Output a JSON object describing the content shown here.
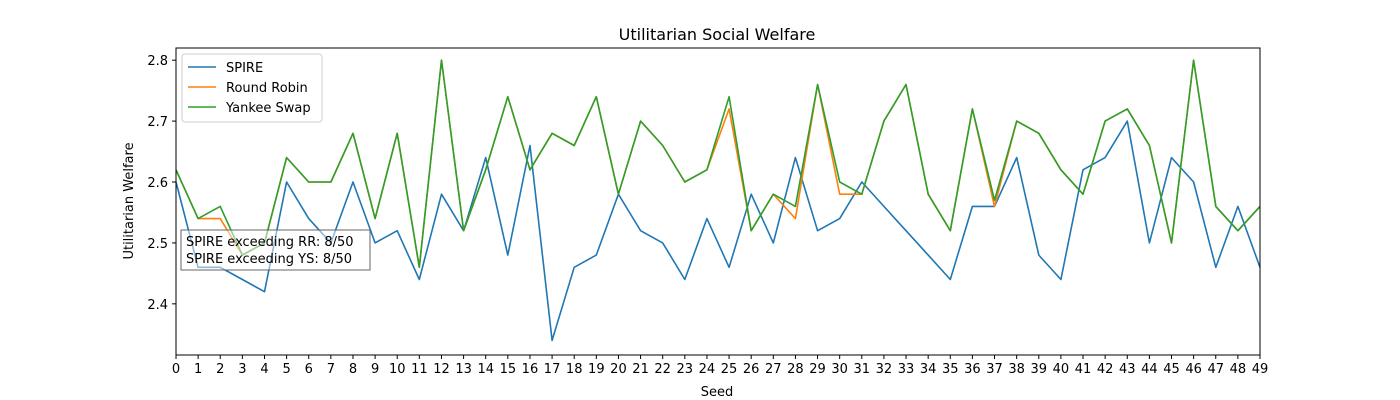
{
  "chart_data": {
    "type": "line",
    "title": "Utilitarian Social Welfare",
    "xlabel": "Seed",
    "ylabel": "Utilitarian Welfare",
    "xlim": [
      0,
      49
    ],
    "ylim": [
      2.316,
      2.82
    ],
    "xticks": [
      "0",
      "1",
      "2",
      "3",
      "4",
      "5",
      "6",
      "7",
      "8",
      "9",
      "10",
      "11",
      "12",
      "13",
      "14",
      "15",
      "16",
      "17",
      "18",
      "19",
      "20",
      "21",
      "22",
      "23",
      "24",
      "25",
      "26",
      "27",
      "28",
      "29",
      "30",
      "31",
      "32",
      "33",
      "34",
      "35",
      "36",
      "37",
      "38",
      "39",
      "40",
      "41",
      "42",
      "43",
      "44",
      "45",
      "46",
      "47",
      "48",
      "49"
    ],
    "yticks": [
      "2.4",
      "2.5",
      "2.6",
      "2.7",
      "2.8"
    ],
    "grid": false,
    "legend_position": "top-left",
    "series": [
      {
        "name": "SPIRE",
        "color": "#1f77b4",
        "values": [
          2.6,
          2.46,
          2.46,
          2.44,
          2.42,
          2.6,
          2.54,
          2.5,
          2.6,
          2.5,
          2.52,
          2.44,
          2.58,
          2.52,
          2.64,
          2.48,
          2.66,
          2.34,
          2.46,
          2.48,
          2.58,
          2.52,
          2.5,
          2.44,
          2.54,
          2.46,
          2.58,
          2.5,
          2.64,
          2.52,
          2.54,
          2.6,
          2.56,
          2.52,
          2.48,
          2.44,
          2.56,
          2.56,
          2.64,
          2.48,
          2.44,
          2.62,
          2.64,
          2.7,
          2.5,
          2.64,
          2.6,
          2.46,
          2.56,
          2.46
        ]
      },
      {
        "name": "Round Robin",
        "color": "#ff7f0e",
        "values": [
          2.62,
          2.54,
          2.54,
          2.48,
          2.5,
          2.64,
          2.6,
          2.6,
          2.68,
          2.54,
          2.68,
          2.46,
          2.8,
          2.52,
          2.62,
          2.74,
          2.62,
          2.68,
          2.66,
          2.74,
          2.58,
          2.7,
          2.66,
          2.6,
          2.62,
          2.72,
          2.52,
          2.58,
          2.54,
          2.76,
          2.58,
          2.58,
          2.7,
          2.76,
          2.58,
          2.52,
          2.72,
          2.56,
          2.7,
          2.68,
          2.62,
          2.58,
          2.7,
          2.72,
          2.66,
          2.5,
          2.8,
          2.56,
          2.52,
          2.56
        ]
      },
      {
        "name": "Yankee Swap",
        "color": "#2ca02c",
        "values": [
          2.62,
          2.54,
          2.56,
          2.48,
          2.5,
          2.64,
          2.6,
          2.6,
          2.68,
          2.54,
          2.68,
          2.46,
          2.8,
          2.52,
          2.62,
          2.74,
          2.62,
          2.68,
          2.66,
          2.74,
          2.58,
          2.7,
          2.66,
          2.6,
          2.62,
          2.74,
          2.52,
          2.58,
          2.56,
          2.76,
          2.6,
          2.58,
          2.7,
          2.76,
          2.58,
          2.52,
          2.72,
          2.57,
          2.7,
          2.68,
          2.62,
          2.58,
          2.7,
          2.72,
          2.66,
          2.5,
          2.8,
          2.56,
          2.52,
          2.56
        ]
      }
    ],
    "annotations": [
      "SPIRE exceeding RR: 8/50",
      "SPIRE exceeding YS: 8/50"
    ]
  }
}
